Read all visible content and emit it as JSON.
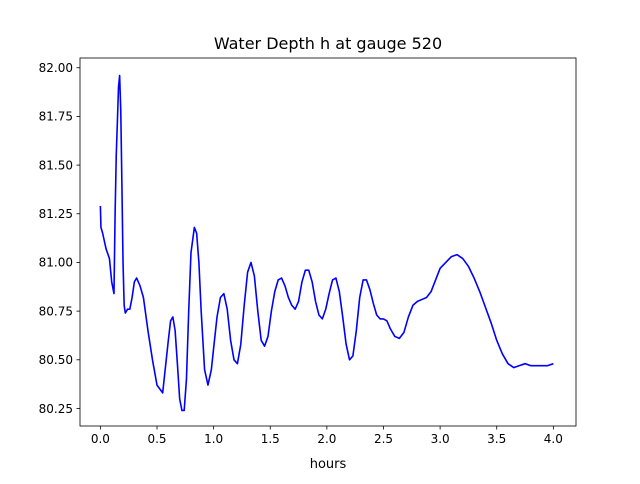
{
  "chart_data": {
    "type": "line",
    "title": "Water Depth h at gauge 520",
    "xlabel": "hours",
    "ylabel": "",
    "xlim": [
      -0.18,
      4.2
    ],
    "ylim": [
      80.16,
      82.05
    ],
    "xticks": [
      0.0,
      0.5,
      1.0,
      1.5,
      2.0,
      2.5,
      3.0,
      3.5,
      4.0
    ],
    "xtick_labels": [
      "0.0",
      "0.5",
      "1.0",
      "1.5",
      "2.0",
      "2.5",
      "3.0",
      "3.5",
      "4.0"
    ],
    "yticks": [
      80.25,
      80.5,
      80.75,
      81.0,
      81.25,
      81.5,
      81.75,
      82.0
    ],
    "ytick_labels": [
      "80.25",
      "80.50",
      "80.75",
      "81.00",
      "81.25",
      "81.50",
      "81.75",
      "82.00"
    ],
    "grid": false,
    "legend": "none",
    "series": [
      {
        "color": "#0000ff",
        "x": [
          0.0,
          0.005,
          0.02,
          0.05,
          0.08,
          0.1,
          0.12,
          0.13,
          0.14,
          0.15,
          0.16,
          0.17,
          0.18,
          0.19,
          0.2,
          0.21,
          0.22,
          0.24,
          0.26,
          0.28,
          0.3,
          0.32,
          0.35,
          0.38,
          0.42,
          0.46,
          0.5,
          0.55,
          0.6,
          0.62,
          0.64,
          0.66,
          0.68,
          0.7,
          0.72,
          0.74,
          0.76,
          0.78,
          0.8,
          0.83,
          0.85,
          0.87,
          0.89,
          0.92,
          0.95,
          0.98,
          1.0,
          1.03,
          1.06,
          1.09,
          1.12,
          1.15,
          1.18,
          1.21,
          1.24,
          1.27,
          1.3,
          1.33,
          1.36,
          1.39,
          1.42,
          1.45,
          1.48,
          1.51,
          1.54,
          1.57,
          1.6,
          1.63,
          1.66,
          1.69,
          1.72,
          1.75,
          1.78,
          1.81,
          1.84,
          1.87,
          1.9,
          1.93,
          1.96,
          1.99,
          2.02,
          2.05,
          2.08,
          2.11,
          2.14,
          2.17,
          2.2,
          2.23,
          2.26,
          2.29,
          2.32,
          2.35,
          2.38,
          2.41,
          2.44,
          2.47,
          2.5,
          2.53,
          2.56,
          2.6,
          2.64,
          2.68,
          2.72,
          2.76,
          2.8,
          2.84,
          2.88,
          2.92,
          2.96,
          3.0,
          3.05,
          3.1,
          3.15,
          3.2,
          3.25,
          3.3,
          3.35,
          3.4,
          3.45,
          3.5,
          3.55,
          3.6,
          3.65,
          3.7,
          3.75,
          3.8,
          3.85,
          3.9,
          3.95,
          4.0
        ],
        "y": [
          81.29,
          81.18,
          81.15,
          81.07,
          81.02,
          80.9,
          80.84,
          81.25,
          81.55,
          81.72,
          81.9,
          81.96,
          81.78,
          81.4,
          81.0,
          80.78,
          80.74,
          80.76,
          80.76,
          80.82,
          80.9,
          80.92,
          80.88,
          80.82,
          80.65,
          80.5,
          80.37,
          80.33,
          80.6,
          80.7,
          80.72,
          80.65,
          80.48,
          80.3,
          80.24,
          80.24,
          80.4,
          80.75,
          81.05,
          81.18,
          81.15,
          81.0,
          80.75,
          80.45,
          80.37,
          80.45,
          80.56,
          80.72,
          80.82,
          80.84,
          80.76,
          80.6,
          80.5,
          80.48,
          80.58,
          80.78,
          80.95,
          81.0,
          80.93,
          80.75,
          80.6,
          80.57,
          80.62,
          80.75,
          80.85,
          80.91,
          80.92,
          80.88,
          80.82,
          80.78,
          80.76,
          80.8,
          80.9,
          80.96,
          80.96,
          80.9,
          80.8,
          80.73,
          80.71,
          80.76,
          80.84,
          80.91,
          80.92,
          80.85,
          80.72,
          80.58,
          80.5,
          80.52,
          80.65,
          80.82,
          80.91,
          80.91,
          80.86,
          80.79,
          80.73,
          80.71,
          80.71,
          80.7,
          80.66,
          80.62,
          80.61,
          80.64,
          80.72,
          80.78,
          80.8,
          80.81,
          80.82,
          80.85,
          80.91,
          80.97,
          81.0,
          81.03,
          81.04,
          81.02,
          80.98,
          80.92,
          80.85,
          80.77,
          80.69,
          80.6,
          80.53,
          80.48,
          80.46,
          80.47,
          80.48,
          80.47,
          80.47,
          80.47,
          80.47,
          80.48
        ]
      }
    ]
  }
}
